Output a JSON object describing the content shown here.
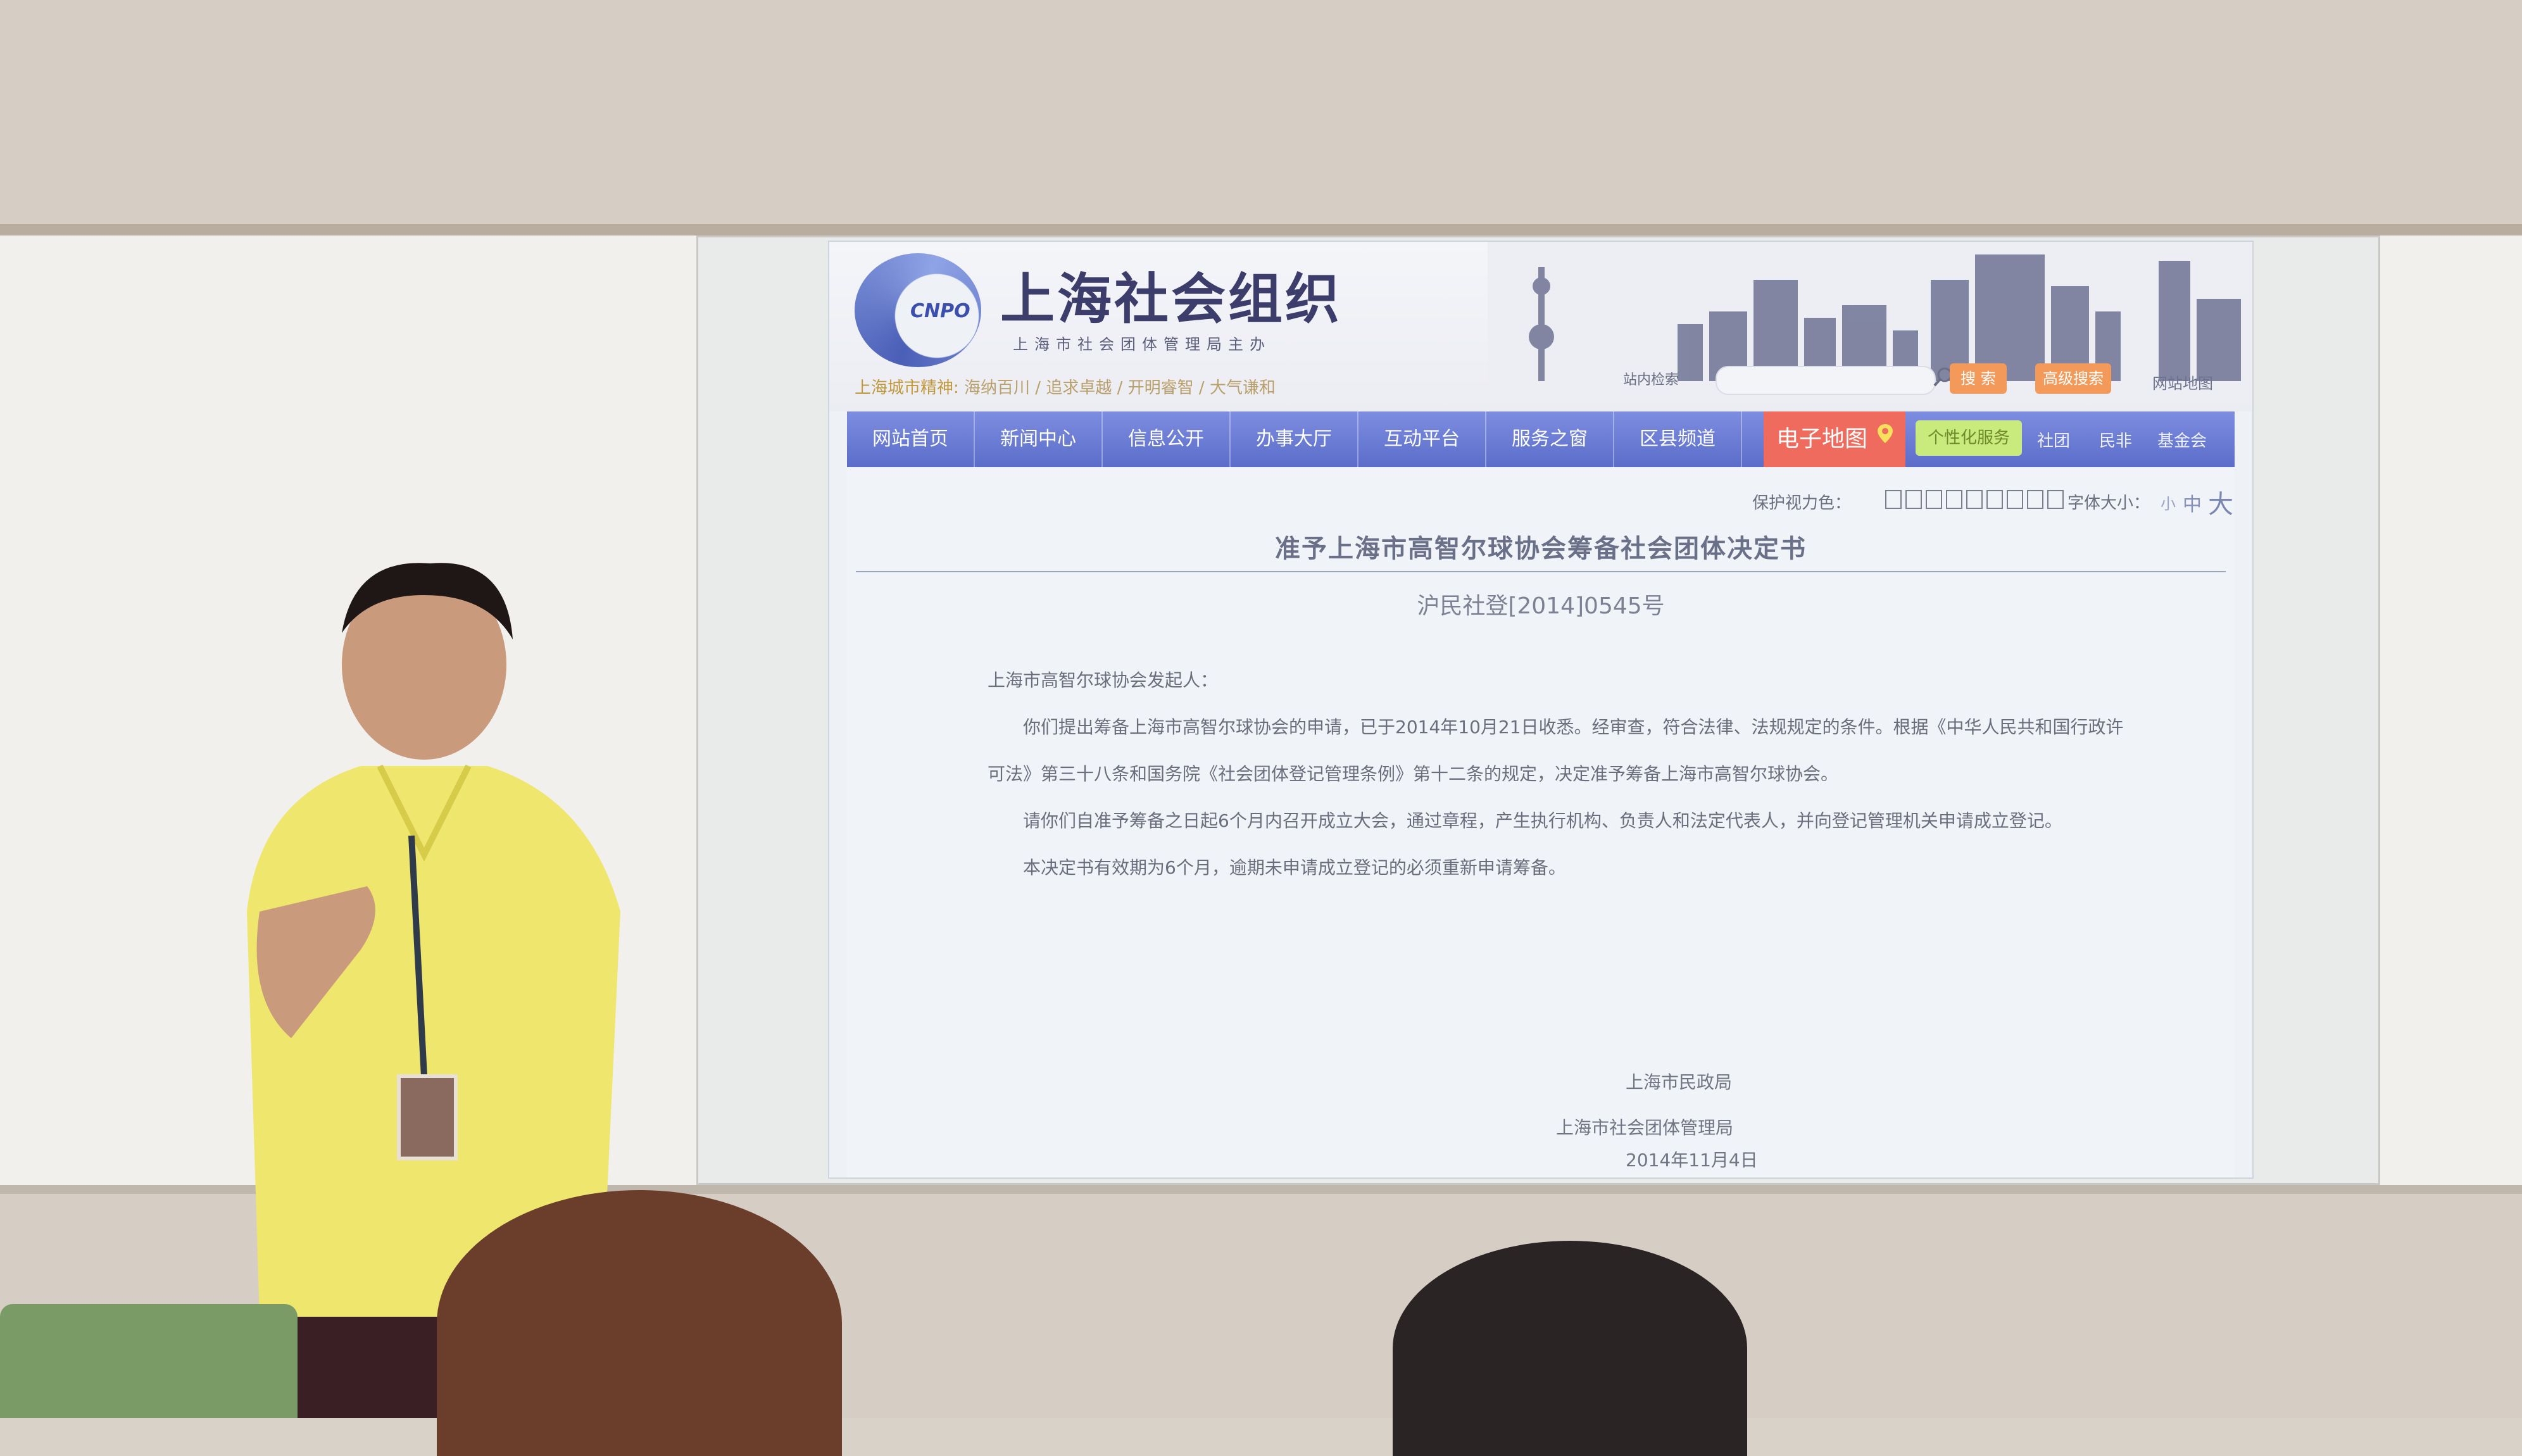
{
  "header": {
    "logo_abbr": "CNPO",
    "site_title": "上海社会组织",
    "site_subtitle": "上海市社会团体管理局主办",
    "city_spirit_label": "上海城市精神:",
    "city_spirit_items": [
      "海纳百川",
      "追求卓越",
      "开明睿智",
      "大气谦和"
    ],
    "search_label": "站内检索",
    "search_placeholder": "",
    "search_button": "搜 索",
    "advanced_search_button": "高级搜索",
    "sitemap_link": "网站地图"
  },
  "nav": {
    "items": [
      "网站首页",
      "新闻中心",
      "信息公开",
      "办事大厅",
      "互动平台",
      "服务之窗",
      "区县频道"
    ],
    "map_label": "电子地图",
    "personal_label": "个性化服务",
    "small_links": [
      "社团",
      "民非",
      "基金会"
    ]
  },
  "content_tools": {
    "eye_protect_label": "保护视力色：",
    "eye_swatch_count": 9,
    "font_size_label": "字体大小：",
    "font_small": "小",
    "font_medium": "中",
    "font_large": "大"
  },
  "document": {
    "title": "准予上海市高智尔球协会筹备社会团体决定书",
    "number": "沪民社登[2014]0545号",
    "salutation": "上海市高智尔球协会发起人：",
    "paragraphs": [
      "你们提出筹备上海市高智尔球协会的申请，已于2014年10月21日收悉。经审查，符合法律、法规规定的条件。根据《中华人民共和国行政许可法》第三十八条和国务院《社会团体登记管理条例》第十二条的规定，决定准予筹备上海市高智尔球协会。",
      "请你们自准予筹备之日起6个月内召开成立大会，通过章程，产生执行机构、负责人和法定代表人，并向登记管理机关申请成立登记。",
      "本决定书有效期为6个月，逾期未申请成立登记的必须重新申请筹备。"
    ],
    "signature_1": "上海市民政局",
    "signature_2": "上海市社会团体管理局",
    "date": "2014年11月4日"
  },
  "colors": {
    "nav_blue": "#6576d2",
    "map_red": "#ef6b5e",
    "personal_green": "#c9ea7d",
    "button_orange": "#f39a5b"
  },
  "icons": [
    "search-icon",
    "map-pin-icon",
    "logo-icon"
  ]
}
